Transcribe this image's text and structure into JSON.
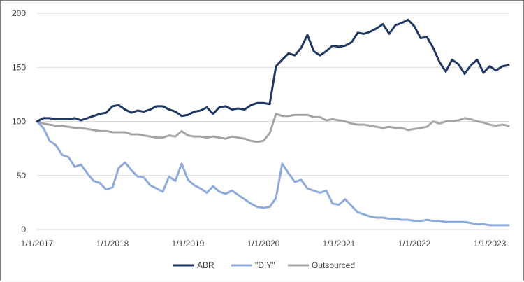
{
  "chart_data": {
    "type": "line",
    "title": "",
    "xlabel": "",
    "ylabel": "",
    "ylim": [
      0,
      200
    ],
    "yticks": [
      0,
      50,
      100,
      150,
      200
    ],
    "x_start": "2017-01",
    "x_end": "2023-04",
    "x_frequency": "monthly",
    "x_tick_labels": [
      "1/1/2017",
      "1/1/2018",
      "1/1/2019",
      "1/1/2020",
      "1/1/2021",
      "1/1/2022",
      "1/1/2023"
    ],
    "grid": "horizontal",
    "legend_position": "bottom",
    "series": [
      {
        "name": "ABR",
        "color": "#1f3864",
        "values": [
          100,
          103,
          103,
          102,
          102,
          102,
          103,
          101,
          103,
          105,
          107,
          108,
          114,
          115,
          111,
          108,
          110,
          109,
          111,
          114,
          114,
          111,
          109,
          105,
          106,
          109,
          110,
          113,
          107,
          113,
          114,
          111,
          112,
          111,
          115,
          117,
          117,
          116,
          151,
          157,
          163,
          161,
          168,
          180,
          165,
          161,
          165,
          170,
          169,
          170,
          173,
          182,
          181,
          183,
          186,
          190,
          181,
          189,
          191,
          194,
          188,
          177,
          178,
          168,
          155,
          146,
          157,
          153,
          144,
          152,
          157,
          145,
          151,
          147,
          151,
          152
        ]
      },
      {
        "name": "\"DIY\"",
        "color": "#8eaadb",
        "values": [
          100,
          94,
          82,
          78,
          69,
          67,
          58,
          60,
          52,
          45,
          43,
          37,
          39,
          57,
          62,
          55,
          49,
          48,
          41,
          38,
          35,
          49,
          45,
          61,
          46,
          41,
          38,
          34,
          40,
          35,
          33,
          36,
          32,
          28,
          24,
          21,
          20,
          21,
          29,
          61,
          52,
          44,
          46,
          38,
          36,
          34,
          36,
          24,
          23,
          28,
          22,
          16,
          14,
          12,
          11,
          11,
          10,
          10,
          9,
          9,
          8,
          8,
          9,
          8,
          8,
          7,
          7,
          7,
          7,
          6,
          5,
          5,
          4,
          4,
          4,
          4
        ]
      },
      {
        "name": "Outsourced",
        "color": "#a5a5a5",
        "values": [
          100,
          98,
          97,
          96,
          96,
          95,
          94,
          94,
          93,
          92,
          91,
          91,
          90,
          90,
          90,
          88,
          88,
          87,
          86,
          85,
          85,
          87,
          86,
          91,
          87,
          86,
          86,
          85,
          86,
          85,
          84,
          86,
          85,
          84,
          82,
          81,
          82,
          89,
          107,
          105,
          105,
          106,
          106,
          106,
          104,
          104,
          101,
          102,
          101,
          100,
          98,
          97,
          97,
          96,
          95,
          94,
          95,
          94,
          94,
          92,
          93,
          94,
          95,
          100,
          98,
          100,
          100,
          101,
          103,
          102,
          100,
          99,
          97,
          96,
          97,
          96
        ]
      }
    ]
  }
}
